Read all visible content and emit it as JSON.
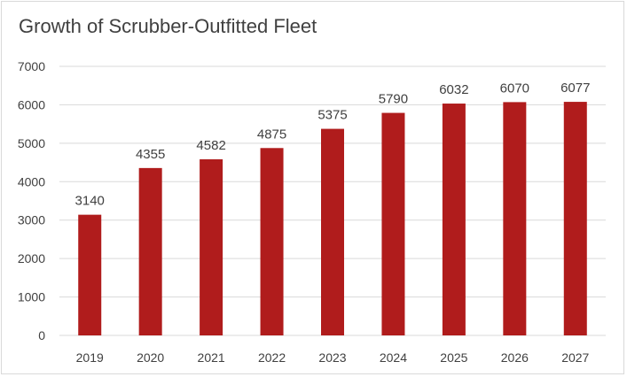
{
  "chart_data": {
    "type": "bar",
    "title": "Growth of Scrubber-Outfitted Fleet",
    "categories": [
      "2019",
      "2020",
      "2021",
      "2022",
      "2023",
      "2024",
      "2025",
      "2026",
      "2027"
    ],
    "values": [
      3140,
      4355,
      4582,
      4875,
      5375,
      5790,
      6032,
      6070,
      6077
    ],
    "ylim": [
      0,
      7000
    ],
    "yticks": [
      0,
      1000,
      2000,
      3000,
      4000,
      5000,
      6000,
      7000
    ],
    "xlabel": "",
    "ylabel": "",
    "grid": true,
    "legend": "none",
    "bar_color": "#b01c1c",
    "grid_color": "#d9d9d9"
  }
}
